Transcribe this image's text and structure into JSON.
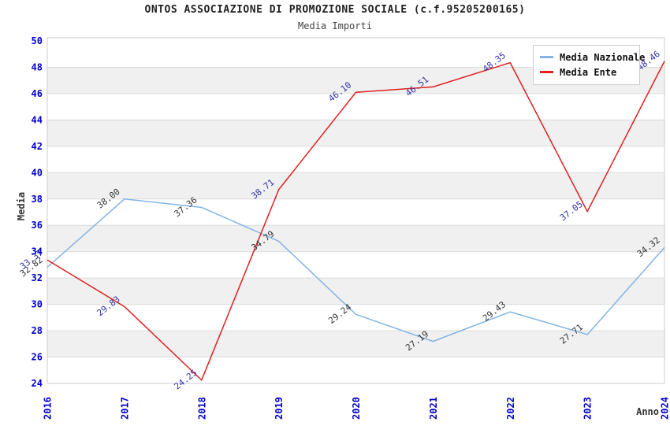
{
  "title": "ONTOS ASSOCIAZIONE DI PROMOZIONE SOCIALE (c.f.95205200165)",
  "subtitle": "Media Importi",
  "legend": {
    "items": [
      {
        "label": "Media Nazionale",
        "color": "#82B4E6"
      },
      {
        "label": "Media Ente",
        "color": "#E02020"
      }
    ]
  },
  "chart_data": {
    "type": "line",
    "x": [
      2016,
      2017,
      2018,
      2019,
      2020,
      2021,
      2022,
      2023,
      2024
    ],
    "xlabel": "Anno",
    "ylabel": "Media",
    "ylim": [
      24,
      50
    ],
    "ytick_step": 2,
    "grid": true,
    "legend_position": "top-right",
    "series": [
      {
        "name": "Media Nazionale",
        "color": "#82B4E6",
        "label_color": "#333333",
        "values": [
          32.82,
          38.0,
          37.36,
          34.79,
          29.24,
          27.19,
          29.43,
          27.71,
          34.32
        ],
        "labels": [
          "32.82",
          "38.00",
          "37.36",
          "34.79",
          "29.24",
          "27.19",
          "29.43",
          "27.71",
          "34.32"
        ]
      },
      {
        "name": "Media Ente",
        "color": "#E02020",
        "label_color": "#3333AA",
        "values": [
          33.37,
          29.83,
          24.25,
          38.71,
          46.1,
          46.51,
          48.35,
          37.05,
          48.46
        ],
        "labels": [
          "33.37",
          "29.83",
          "24.25",
          "38.71",
          "46.10",
          "46.51",
          "48.35",
          "37.05",
          "48.46"
        ]
      }
    ],
    "style_colors": {
      "tick_label": "#0000CC",
      "band_fill": "#F0F0F0",
      "grid_line": "#DCDCDC",
      "plot_border": "#CCCCCC",
      "axis_title": "#333333"
    }
  }
}
